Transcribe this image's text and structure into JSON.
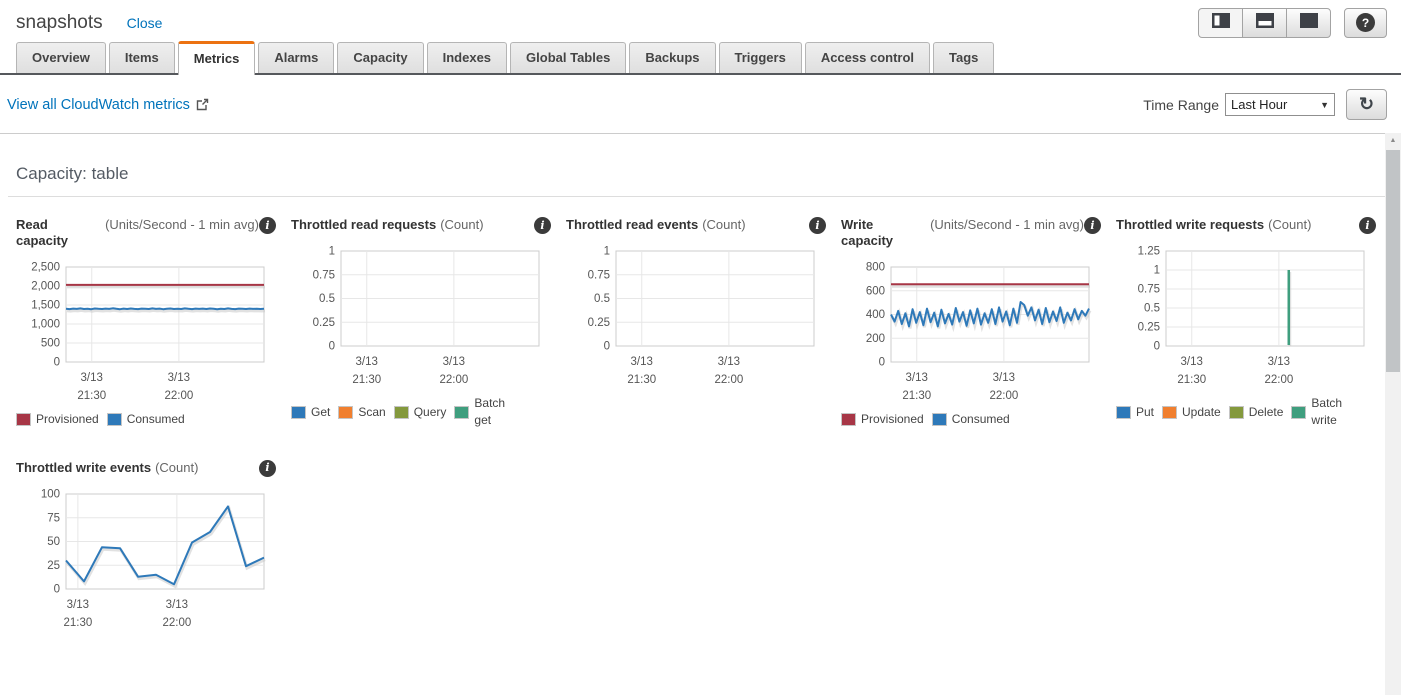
{
  "header": {
    "title": "snapshots",
    "close_label": "Close"
  },
  "icons": {
    "info": "i",
    "help": "?",
    "refresh": "↻",
    "dropdown": "▼",
    "scroll_up": "▲"
  },
  "tabs": [
    {
      "label": "Overview",
      "active": false
    },
    {
      "label": "Items",
      "active": false
    },
    {
      "label": "Metrics",
      "active": true
    },
    {
      "label": "Alarms",
      "active": false
    },
    {
      "label": "Capacity",
      "active": false
    },
    {
      "label": "Indexes",
      "active": false
    },
    {
      "label": "Global Tables",
      "active": false
    },
    {
      "label": "Backups",
      "active": false
    },
    {
      "label": "Triggers",
      "active": false
    },
    {
      "label": "Access control",
      "active": false
    },
    {
      "label": "Tags",
      "active": false
    }
  ],
  "toolbar": {
    "cloudwatch_link": "View all CloudWatch metrics",
    "time_range_label": "Time Range",
    "time_range_value": "Last Hour"
  },
  "section": {
    "title": "Capacity: table"
  },
  "colors": {
    "accent_orange": "#ec7211",
    "link_blue": "#0073bb",
    "provisioned_red": "#a73646",
    "consumed_blue": "#2e79b9",
    "scan_orange": "#f07f2f",
    "query_olive": "#84993d",
    "batch_teal": "#3f9e7e",
    "tab_underline": "#55585c"
  },
  "chart_data": [
    {
      "id": "read-capacity",
      "type": "line",
      "title": "Read capacity",
      "unit": "(Units/Second - 1 min avg)",
      "ylim": [
        0,
        2500
      ],
      "yticks": [
        {
          "v": 2500,
          "l": "2,500"
        },
        {
          "v": 2000,
          "l": "2,000"
        },
        {
          "v": 1500,
          "l": "1,500"
        },
        {
          "v": 1000,
          "l": "1,000"
        },
        {
          "v": 500,
          "l": "500"
        },
        {
          "v": 0,
          "l": "0"
        }
      ],
      "xticks": [
        {
          "l1": "3/13",
          "l2": "21:30",
          "pos": 0.13
        },
        {
          "l1": "3/13",
          "l2": "22:00",
          "pos": 0.57
        }
      ],
      "series": [
        {
          "name": "Provisioned",
          "color": "#a73646",
          "values": [
            2030,
            2030
          ]
        },
        {
          "name": "Consumed",
          "color": "#2e79b9",
          "values": [
            1400,
            1392,
            1405,
            1398,
            1410,
            1395,
            1402,
            1390,
            1408,
            1400,
            1394,
            1406,
            1398,
            1412,
            1400,
            1390,
            1404,
            1396,
            1408,
            1398,
            1392,
            1406,
            1400,
            1394,
            1410,
            1398,
            1404,
            1390,
            1400,
            1408,
            1394,
            1402,
            1396,
            1410,
            1400,
            1392,
            1406,
            1398,
            1404,
            1394,
            1408,
            1400,
            1390,
            1402,
            1396,
            1410,
            1398,
            1392,
            1404,
            1400,
            1394,
            1406,
            1398,
            1402,
            1396,
            1400
          ]
        }
      ],
      "legend": [
        {
          "label": "Provisioned",
          "color": "#a73646"
        },
        {
          "label": "Consumed",
          "color": "#2e79b9"
        }
      ]
    },
    {
      "id": "throttled-read-requests",
      "type": "line",
      "title": "Throttled read requests",
      "unit": "(Count)",
      "ylim": [
        0,
        1
      ],
      "yticks": [
        {
          "v": 1,
          "l": "1"
        },
        {
          "v": 0.75,
          "l": "0.75"
        },
        {
          "v": 0.5,
          "l": "0.5"
        },
        {
          "v": 0.25,
          "l": "0.25"
        },
        {
          "v": 0,
          "l": "0"
        }
      ],
      "xticks": [
        {
          "l1": "3/13",
          "l2": "21:30",
          "pos": 0.13
        },
        {
          "l1": "3/13",
          "l2": "22:00",
          "pos": 0.57
        }
      ],
      "series": [],
      "legend": [
        {
          "label": "Get",
          "color": "#2e79b9"
        },
        {
          "label": "Scan",
          "color": "#f07f2f"
        },
        {
          "label": "Query",
          "color": "#84993d"
        },
        {
          "label": "Batch\nget",
          "color": "#3f9e7e"
        }
      ]
    },
    {
      "id": "throttled-read-events",
      "type": "line",
      "title": "Throttled read events",
      "unit": "(Count)",
      "ylim": [
        0,
        1
      ],
      "yticks": [
        {
          "v": 1,
          "l": "1"
        },
        {
          "v": 0.75,
          "l": "0.75"
        },
        {
          "v": 0.5,
          "l": "0.5"
        },
        {
          "v": 0.25,
          "l": "0.25"
        },
        {
          "v": 0,
          "l": "0"
        }
      ],
      "xticks": [
        {
          "l1": "3/13",
          "l2": "21:30",
          "pos": 0.13
        },
        {
          "l1": "3/13",
          "l2": "22:00",
          "pos": 0.57
        }
      ],
      "series": [],
      "legend": []
    },
    {
      "id": "write-capacity",
      "type": "line",
      "title": "Write capacity",
      "unit": "(Units/Second - 1 min avg)",
      "ylim": [
        0,
        800
      ],
      "yticks": [
        {
          "v": 800,
          "l": "800"
        },
        {
          "v": 600,
          "l": "600"
        },
        {
          "v": 400,
          "l": "400"
        },
        {
          "v": 200,
          "l": "200"
        },
        {
          "v": 0,
          "l": "0"
        }
      ],
      "xticks": [
        {
          "l1": "3/13",
          "l2": "21:30",
          "pos": 0.13
        },
        {
          "l1": "3/13",
          "l2": "22:00",
          "pos": 0.57
        }
      ],
      "series": [
        {
          "name": "Provisioned",
          "color": "#a73646",
          "values": [
            655,
            655
          ]
        },
        {
          "name": "Consumed",
          "color": "#2e79b9",
          "values": [
            400,
            340,
            430,
            320,
            410,
            300,
            445,
            330,
            420,
            310,
            450,
            335,
            415,
            300,
            440,
            325,
            405,
            315,
            455,
            340,
            420,
            305,
            435,
            325,
            450,
            315,
            410,
            330,
            445,
            320,
            460,
            340,
            425,
            310,
            450,
            330,
            505,
            480,
            390,
            460,
            350,
            440,
            320,
            455,
            335,
            425,
            345,
            460,
            330,
            415,
            350,
            445,
            360,
            430,
            390,
            450
          ]
        }
      ],
      "legend": [
        {
          "label": "Provisioned",
          "color": "#a73646"
        },
        {
          "label": "Consumed",
          "color": "#2e79b9"
        }
      ]
    },
    {
      "id": "throttled-write-requests",
      "type": "line",
      "title": "Throttled write requests",
      "unit": "(Count)",
      "ylim": [
        0,
        1.25
      ],
      "yticks": [
        {
          "v": 1.25,
          "l": "1.25"
        },
        {
          "v": 1,
          "l": "1"
        },
        {
          "v": 0.75,
          "l": "0.75"
        },
        {
          "v": 0.5,
          "l": "0.5"
        },
        {
          "v": 0.25,
          "l": "0.25"
        },
        {
          "v": 0,
          "l": "0"
        }
      ],
      "xticks": [
        {
          "l1": "3/13",
          "l2": "21:30",
          "pos": 0.13
        },
        {
          "l1": "3/13",
          "l2": "22:00",
          "pos": 0.57
        }
      ],
      "series": [
        {
          "name": "Batch write",
          "color": "#3f9e7e",
          "type": "vline",
          "x": 0.62,
          "value": 1.0
        }
      ],
      "legend": [
        {
          "label": "Put",
          "color": "#2e79b9"
        },
        {
          "label": "Update",
          "color": "#f07f2f"
        },
        {
          "label": "Delete",
          "color": "#84993d"
        },
        {
          "label": "Batch\nwrite",
          "color": "#3f9e7e"
        }
      ]
    },
    {
      "id": "throttled-write-events",
      "type": "line",
      "title": "Throttled write events",
      "unit": "(Count)",
      "ylim": [
        0,
        100
      ],
      "yticks": [
        {
          "v": 100,
          "l": "100"
        },
        {
          "v": 75,
          "l": "75"
        },
        {
          "v": 50,
          "l": "50"
        },
        {
          "v": 25,
          "l": "25"
        },
        {
          "v": 0,
          "l": "0"
        }
      ],
      "xticks": [
        {
          "l1": "3/13",
          "l2": "21:30",
          "pos": 0.06
        },
        {
          "l1": "3/13",
          "l2": "22:00",
          "pos": 0.56
        }
      ],
      "series": [
        {
          "name": "Throttled write events",
          "color": "#2e79b9",
          "values": [
            30,
            8,
            44,
            43,
            13,
            15,
            5,
            49,
            60,
            87,
            24,
            33
          ]
        }
      ],
      "legend": []
    }
  ]
}
